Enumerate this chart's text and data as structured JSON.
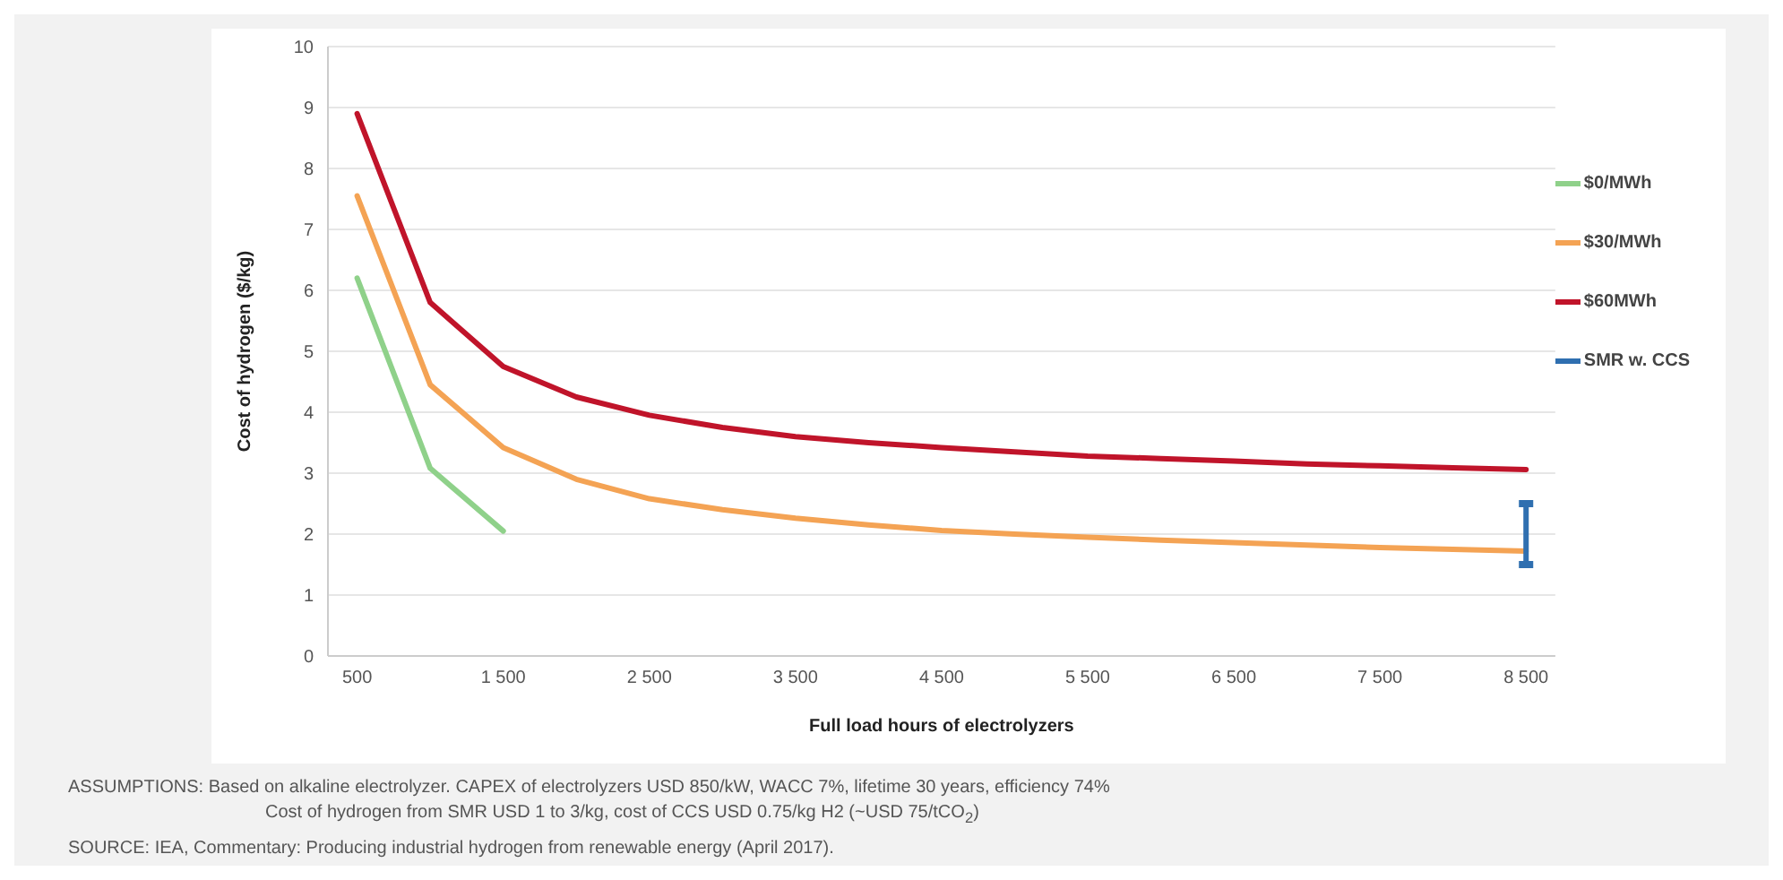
{
  "chart_data": {
    "type": "line",
    "xlabel": "Full load hours of electrolyzers",
    "ylabel": "Cost of hydrogen ($/kg)",
    "x": [
      500,
      1000,
      1500,
      2000,
      2500,
      3000,
      3500,
      4000,
      4500,
      5000,
      5500,
      6000,
      6500,
      7000,
      7500,
      8000,
      8500
    ],
    "series": [
      {
        "name": "$0/MWh",
        "color": "#8fd18a",
        "x": [
          500,
          1000,
          1500
        ],
        "values": [
          6.2,
          3.08,
          2.05
        ]
      },
      {
        "name": "$30/MWh",
        "color": "#f4a354",
        "values": [
          7.55,
          4.45,
          3.42,
          2.9,
          2.58,
          2.4,
          2.26,
          2.15,
          2.06,
          2.0,
          1.95,
          1.9,
          1.86,
          1.82,
          1.78,
          1.75,
          1.72
        ]
      },
      {
        "name": "$60MWh",
        "color": "#c0142a",
        "values": [
          8.9,
          5.8,
          4.75,
          4.25,
          3.95,
          3.75,
          3.6,
          3.5,
          3.42,
          3.35,
          3.28,
          3.24,
          3.2,
          3.15,
          3.12,
          3.09,
          3.06
        ]
      },
      {
        "name": "SMR w. CCS",
        "color": "#2f6fb0",
        "marker": "square",
        "x": [
          8500,
          8500
        ],
        "values": [
          1.5,
          2.5
        ]
      }
    ],
    "xlim": [
      300,
      8700
    ],
    "xticks": [
      {
        "value": 500,
        "label": "500"
      },
      {
        "value": 1500,
        "label": "1 500"
      },
      {
        "value": 2500,
        "label": "2 500"
      },
      {
        "value": 3500,
        "label": "3 500"
      },
      {
        "value": 4500,
        "label": "4 500"
      },
      {
        "value": 5500,
        "label": "5 500"
      },
      {
        "value": 6500,
        "label": "6 500"
      },
      {
        "value": 7500,
        "label": "7 500"
      },
      {
        "value": 8500,
        "label": "8 500"
      }
    ],
    "ylim": [
      0,
      10
    ],
    "yticks": [
      0,
      1,
      2,
      3,
      4,
      5,
      6,
      7,
      8,
      9,
      10
    ],
    "grid": "y",
    "legend": "right",
    "marker": "none",
    "line_style": "solid",
    "annotations": [
      "ASSUMPTIONS: Based on alkaline electrolyzer. CAPEX of electrolyzers USD 850/kW, WACC 7%, lifetime 30 years, efficiency 74%",
      "Cost of hydrogen from SMR USD 1 to 3/kg, cost of CCS USD 0.75/kg H2 (~USD 75/tCO$_{2}$)",
      "SOURCE: IEA, Commentary: Producing industrial hydrogen from renewable energy (April 2017)."
    ]
  }
}
